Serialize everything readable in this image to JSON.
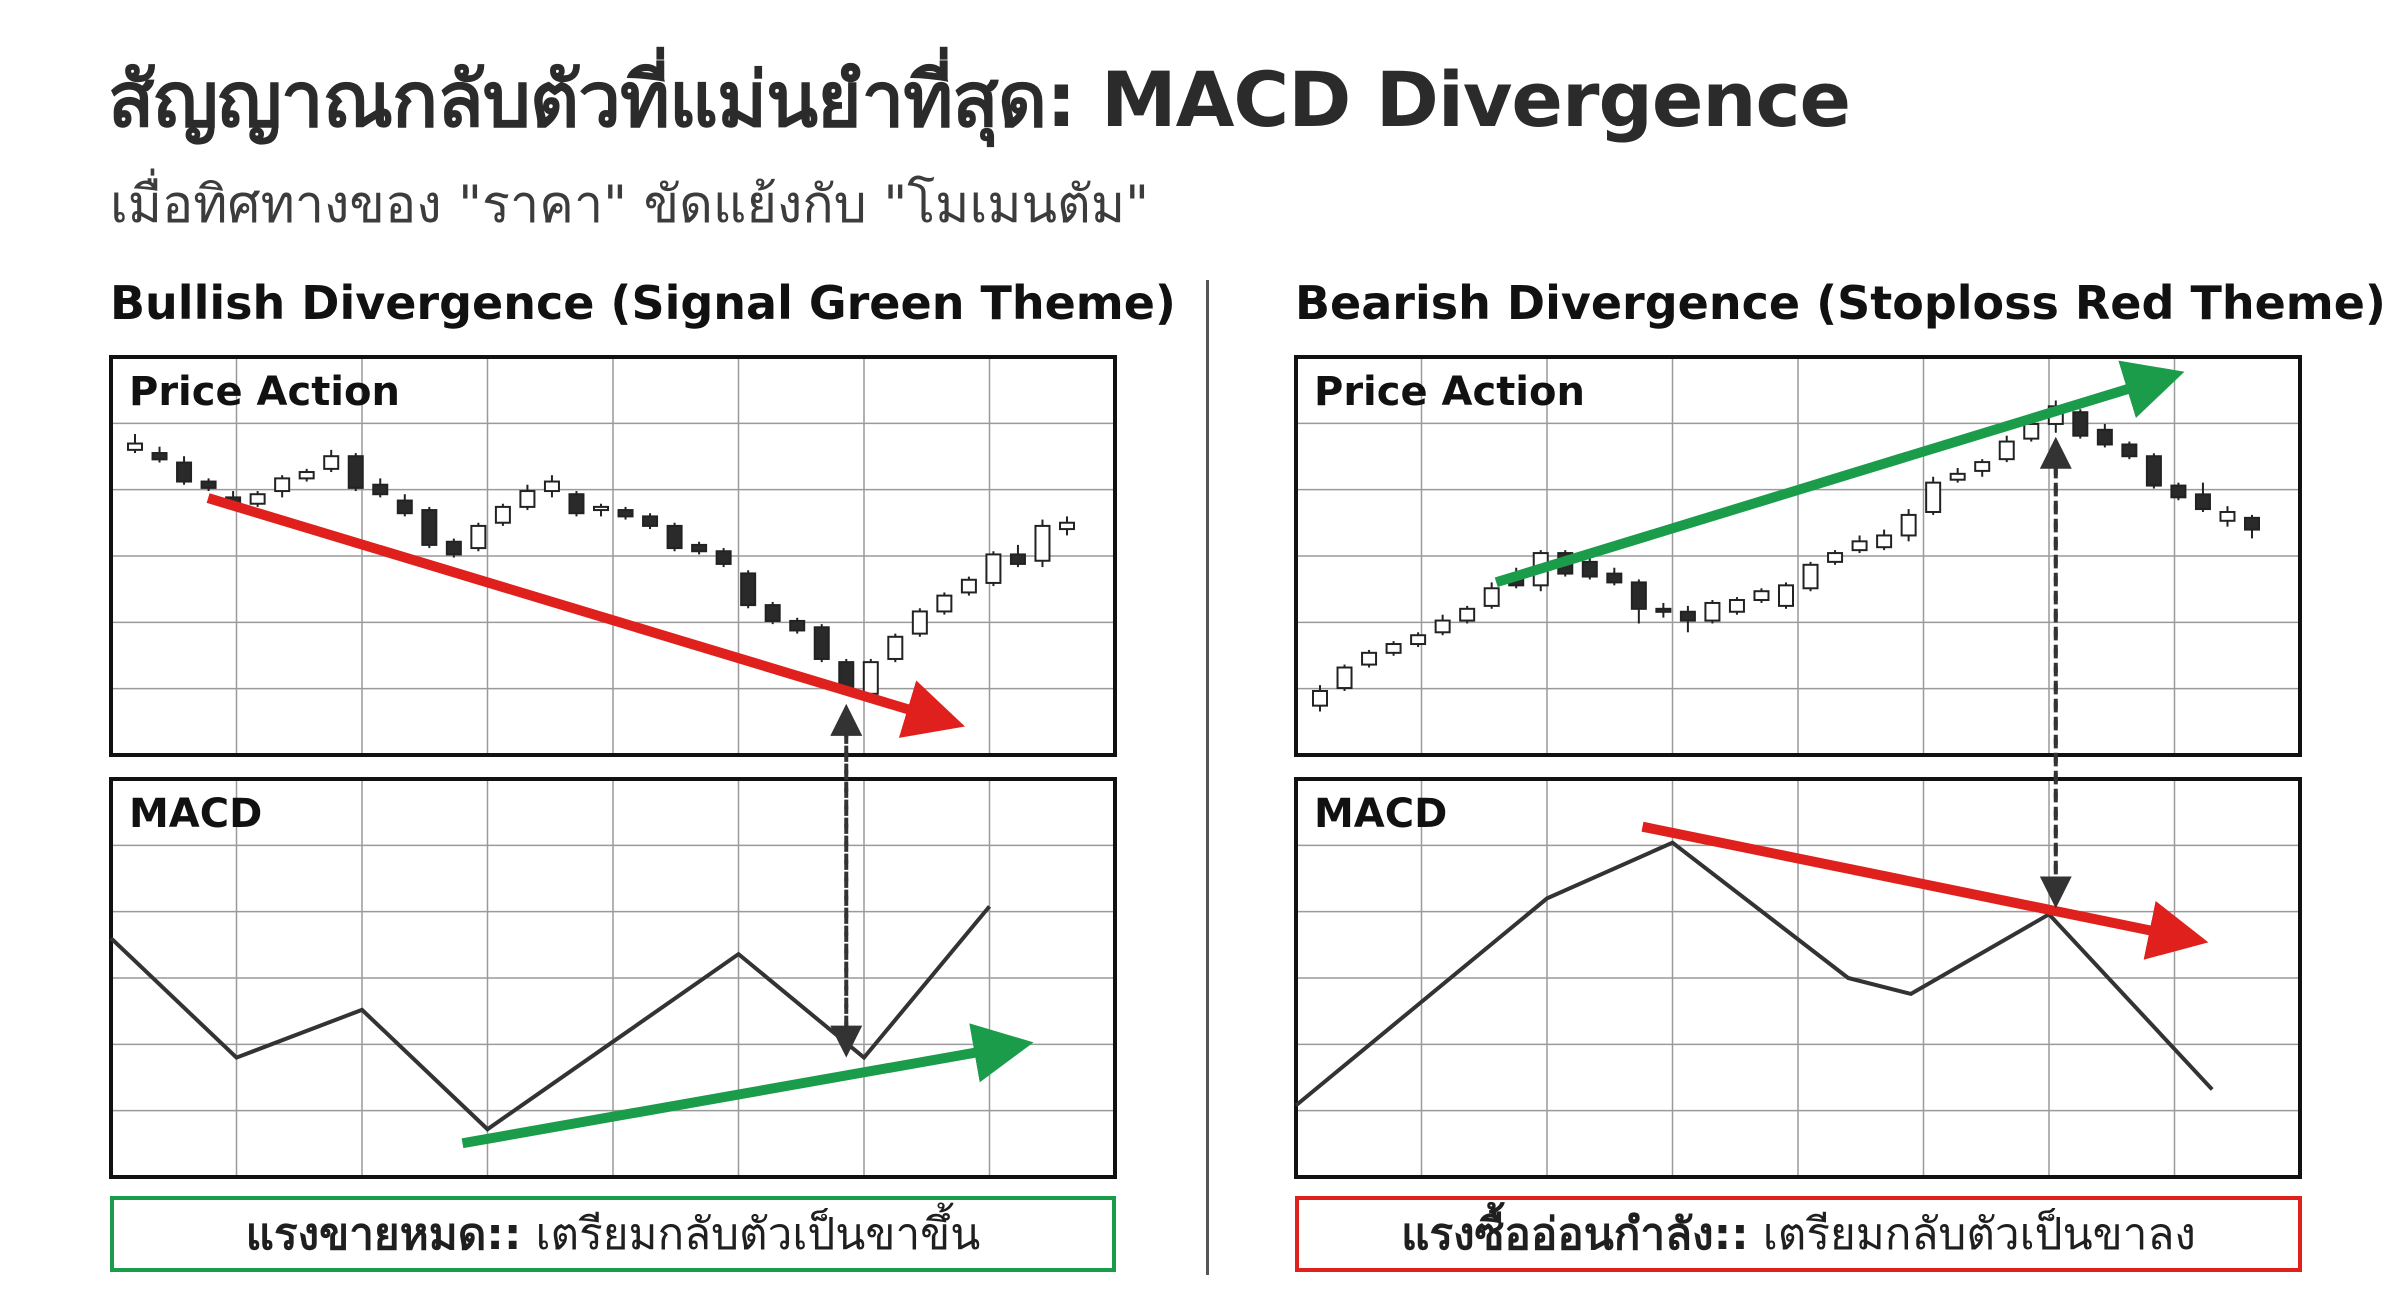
{
  "title": "สัญญาณกลับตัวที่แม่นยำที่สุด: MACD Divergence",
  "subtitle": "เมื่อทิศทางของ \"ราคา\" ขัดแย้งกับ \"โมเมนตัม\"",
  "colors": {
    "signal_green": "#1b9c4a",
    "stoploss_red": "#e0201c",
    "line": "#333333",
    "grid": "#9a9a9a",
    "candle_dark": "#2a2a2a"
  },
  "chart_data": [
    {
      "type": "candlestick",
      "title": "Bullish Divergence (Signal Green Theme)",
      "panel_label": "Price Action",
      "trend_arrow": {
        "color": "red",
        "direction": "down"
      },
      "candles": [
        {
          "o": 97,
          "h": 100,
          "l": 94,
          "c": 95,
          "up": true
        },
        {
          "o": 94,
          "h": 96,
          "l": 91,
          "c": 92,
          "up": false
        },
        {
          "o": 91,
          "h": 93,
          "l": 84,
          "c": 85,
          "up": false
        },
        {
          "o": 85,
          "h": 86,
          "l": 82,
          "c": 83,
          "up": false
        },
        {
          "o": 80,
          "h": 82,
          "l": 76,
          "c": 77,
          "up": false
        },
        {
          "o": 78,
          "h": 82,
          "l": 77,
          "c": 81,
          "up": true
        },
        {
          "o": 82,
          "h": 87,
          "l": 80,
          "c": 86,
          "up": true
        },
        {
          "o": 86,
          "h": 89,
          "l": 85,
          "c": 88,
          "up": true
        },
        {
          "o": 89,
          "h": 95,
          "l": 88,
          "c": 93,
          "up": true
        },
        {
          "o": 93,
          "h": 94,
          "l": 82,
          "c": 83,
          "up": false
        },
        {
          "o": 84,
          "h": 86,
          "l": 80,
          "c": 81,
          "up": false
        },
        {
          "o": 79,
          "h": 81,
          "l": 74,
          "c": 75,
          "up": false
        },
        {
          "o": 76,
          "h": 77,
          "l": 64,
          "c": 65,
          "up": false
        },
        {
          "o": 66,
          "h": 67,
          "l": 61,
          "c": 62,
          "up": false
        },
        {
          "o": 64,
          "h": 72,
          "l": 63,
          "c": 71,
          "up": true
        },
        {
          "o": 72,
          "h": 78,
          "l": 71,
          "c": 77,
          "up": true
        },
        {
          "o": 77,
          "h": 84,
          "l": 76,
          "c": 82,
          "up": true
        },
        {
          "o": 82,
          "h": 87,
          "l": 80,
          "c": 85,
          "up": true
        },
        {
          "o": 81,
          "h": 82,
          "l": 74,
          "c": 75,
          "up": false
        },
        {
          "o": 76,
          "h": 78,
          "l": 74,
          "c": 77,
          "up": true
        },
        {
          "o": 76,
          "h": 77,
          "l": 73,
          "c": 74,
          "up": false
        },
        {
          "o": 74,
          "h": 75,
          "l": 70,
          "c": 71,
          "up": false
        },
        {
          "o": 71,
          "h": 72,
          "l": 63,
          "c": 64,
          "up": false
        },
        {
          "o": 65,
          "h": 66,
          "l": 62,
          "c": 63,
          "up": false
        },
        {
          "o": 63,
          "h": 64,
          "l": 58,
          "c": 59,
          "up": false
        },
        {
          "o": 56,
          "h": 57,
          "l": 45,
          "c": 46,
          "up": false
        },
        {
          "o": 46,
          "h": 47,
          "l": 40,
          "c": 41,
          "up": false
        },
        {
          "o": 41,
          "h": 42,
          "l": 37,
          "c": 38,
          "up": false
        },
        {
          "o": 39,
          "h": 40,
          "l": 28,
          "c": 29,
          "up": false
        },
        {
          "o": 28,
          "h": 29,
          "l": 18,
          "c": 19,
          "up": false
        },
        {
          "o": 18,
          "h": 29,
          "l": 17,
          "c": 28,
          "up": true
        },
        {
          "o": 29,
          "h": 37,
          "l": 28,
          "c": 36,
          "up": true
        },
        {
          "o": 37,
          "h": 45,
          "l": 36,
          "c": 44,
          "up": true
        },
        {
          "o": 44,
          "h": 50,
          "l": 43,
          "c": 49,
          "up": true
        },
        {
          "o": 50,
          "h": 55,
          "l": 49,
          "c": 54,
          "up": true
        },
        {
          "o": 53,
          "h": 63,
          "l": 52,
          "c": 62,
          "up": true
        },
        {
          "o": 62,
          "h": 65,
          "l": 58,
          "c": 59,
          "up": false
        },
        {
          "o": 60,
          "h": 73,
          "l": 58,
          "c": 71,
          "up": true
        },
        {
          "o": 70,
          "h": 74,
          "l": 68,
          "c": 72,
          "up": true
        }
      ],
      "macd_label": "MACD",
      "macd_x": [
        0,
        1,
        2,
        3,
        4,
        5,
        6,
        7
      ],
      "macd": [
        60,
        30,
        42,
        12,
        34,
        56,
        30,
        68
      ],
      "macd_trend_arrow": {
        "color": "green",
        "direction": "up"
      },
      "caption_strong": "แรงขายหมด::",
      "caption_text": " เตรียมกลับตัวเป็นขาขึ้น"
    },
    {
      "type": "candlestick",
      "title": "Bearish Divergence (Stoploss Red Theme)",
      "panel_label": "Price Action",
      "trend_arrow": {
        "color": "green",
        "direction": "up"
      },
      "candles": [
        {
          "o": 10,
          "h": 17,
          "l": 8,
          "c": 15,
          "up": true
        },
        {
          "o": 16,
          "h": 24,
          "l": 15,
          "c": 23,
          "up": true
        },
        {
          "o": 24,
          "h": 29,
          "l": 23,
          "c": 28,
          "up": true
        },
        {
          "o": 28,
          "h": 32,
          "l": 27,
          "c": 31,
          "up": true
        },
        {
          "o": 31,
          "h": 35,
          "l": 30,
          "c": 34,
          "up": true
        },
        {
          "o": 35,
          "h": 41,
          "l": 34,
          "c": 39,
          "up": true
        },
        {
          "o": 39,
          "h": 44,
          "l": 38,
          "c": 43,
          "up": true
        },
        {
          "o": 44,
          "h": 52,
          "l": 43,
          "c": 50,
          "up": true
        },
        {
          "o": 53,
          "h": 57,
          "l": 50,
          "c": 51,
          "up": false
        },
        {
          "o": 51,
          "h": 63,
          "l": 49,
          "c": 62,
          "up": true
        },
        {
          "o": 62,
          "h": 63,
          "l": 54,
          "c": 55,
          "up": false
        },
        {
          "o": 59,
          "h": 61,
          "l": 53,
          "c": 54,
          "up": false
        },
        {
          "o": 55,
          "h": 57,
          "l": 51,
          "c": 52,
          "up": false
        },
        {
          "o": 52,
          "h": 53,
          "l": 38,
          "c": 43,
          "up": false
        },
        {
          "o": 43,
          "h": 45,
          "l": 40,
          "c": 42,
          "up": false
        },
        {
          "o": 42,
          "h": 44,
          "l": 35,
          "c": 39,
          "up": false
        },
        {
          "o": 39,
          "h": 46,
          "l": 38,
          "c": 45,
          "up": true
        },
        {
          "o": 42,
          "h": 47,
          "l": 41,
          "c": 46,
          "up": true
        },
        {
          "o": 46,
          "h": 50,
          "l": 45,
          "c": 49,
          "up": true
        },
        {
          "o": 44,
          "h": 52,
          "l": 43,
          "c": 51,
          "up": true
        },
        {
          "o": 50,
          "h": 59,
          "l": 49,
          "c": 58,
          "up": true
        },
        {
          "o": 59,
          "h": 63,
          "l": 58,
          "c": 62,
          "up": true
        },
        {
          "o": 63,
          "h": 68,
          "l": 62,
          "c": 66,
          "up": true
        },
        {
          "o": 64,
          "h": 70,
          "l": 63,
          "c": 68,
          "up": true
        },
        {
          "o": 68,
          "h": 77,
          "l": 66,
          "c": 75,
          "up": true
        },
        {
          "o": 76,
          "h": 88,
          "l": 75,
          "c": 86,
          "up": true
        },
        {
          "o": 87,
          "h": 91,
          "l": 86,
          "c": 89,
          "up": true
        },
        {
          "o": 90,
          "h": 94,
          "l": 88,
          "c": 93,
          "up": true
        },
        {
          "o": 94,
          "h": 102,
          "l": 93,
          "c": 100,
          "up": true
        },
        {
          "o": 101,
          "h": 108,
          "l": 100,
          "c": 106,
          "up": true
        },
        {
          "o": 106,
          "h": 114,
          "l": 103,
          "c": 112,
          "up": true
        },
        {
          "o": 110,
          "h": 111,
          "l": 101,
          "c": 102,
          "up": false
        },
        {
          "o": 104,
          "h": 106,
          "l": 98,
          "c": 99,
          "up": false
        },
        {
          "o": 99,
          "h": 100,
          "l": 94,
          "c": 95,
          "up": false
        },
        {
          "o": 95,
          "h": 96,
          "l": 84,
          "c": 85,
          "up": false
        },
        {
          "o": 85,
          "h": 86,
          "l": 80,
          "c": 81,
          "up": false
        },
        {
          "o": 82,
          "h": 86,
          "l": 76,
          "c": 77,
          "up": false
        },
        {
          "o": 76,
          "h": 78,
          "l": 71,
          "c": 73,
          "up": true
        },
        {
          "o": 74,
          "h": 75,
          "l": 67,
          "c": 70,
          "up": false
        }
      ],
      "macd_label": "MACD",
      "macd_x": [
        0,
        2,
        3,
        4.4,
        4.9,
        6,
        7.3
      ],
      "macd": [
        18,
        70,
        84,
        50,
        46,
        66,
        22
      ],
      "macd_trend_arrow": {
        "color": "red",
        "direction": "down"
      },
      "caption_strong": "แรงซื้ออ่อนกำลัง::",
      "caption_text": " เตรียมกลับตัวเป็นขาลง"
    }
  ]
}
